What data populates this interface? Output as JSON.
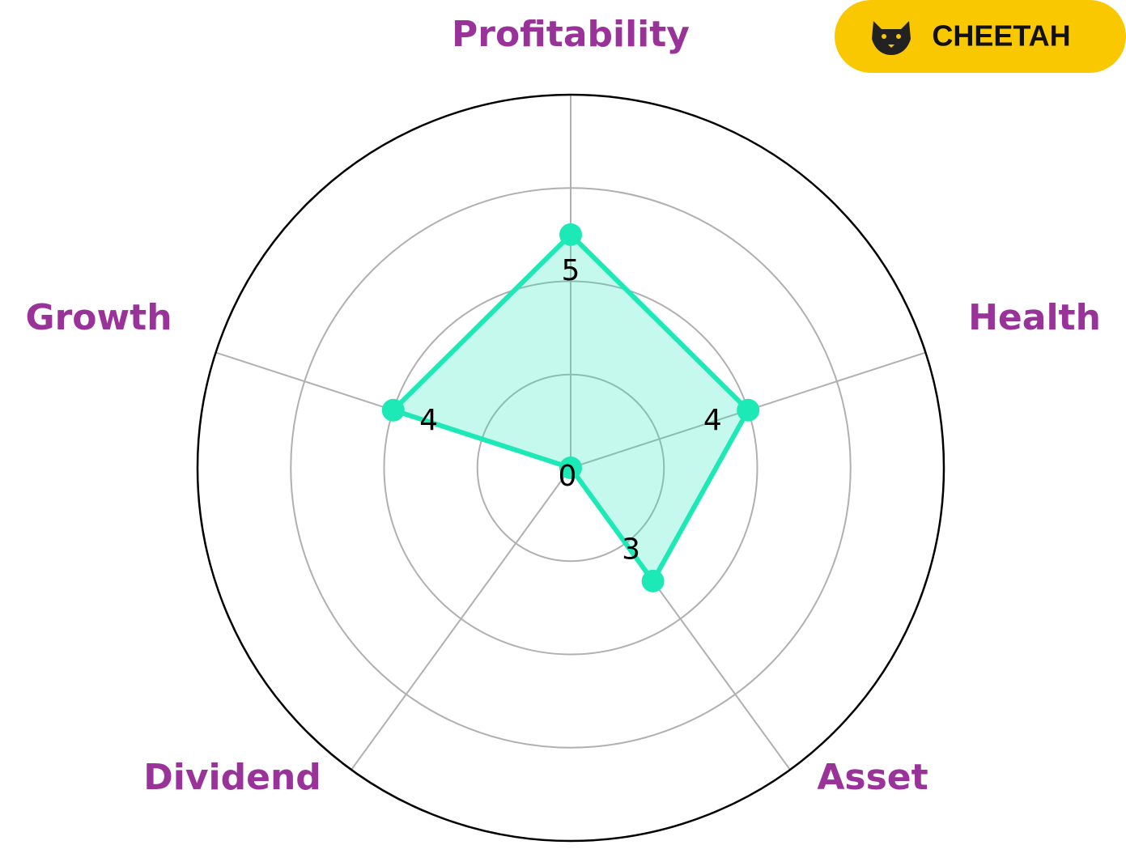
{
  "chart_data": {
    "type": "radar",
    "categories": [
      "Profitability",
      "Health",
      "Asset",
      "Dividend",
      "Growth"
    ],
    "values": [
      5,
      4,
      3,
      0,
      4
    ],
    "color": "#1de9b6",
    "label_color": "#993399",
    "ylim": [
      0,
      8
    ],
    "yticks": [
      2,
      4,
      6
    ],
    "grid": true
  },
  "badge": {
    "label": "CHEETAH"
  }
}
